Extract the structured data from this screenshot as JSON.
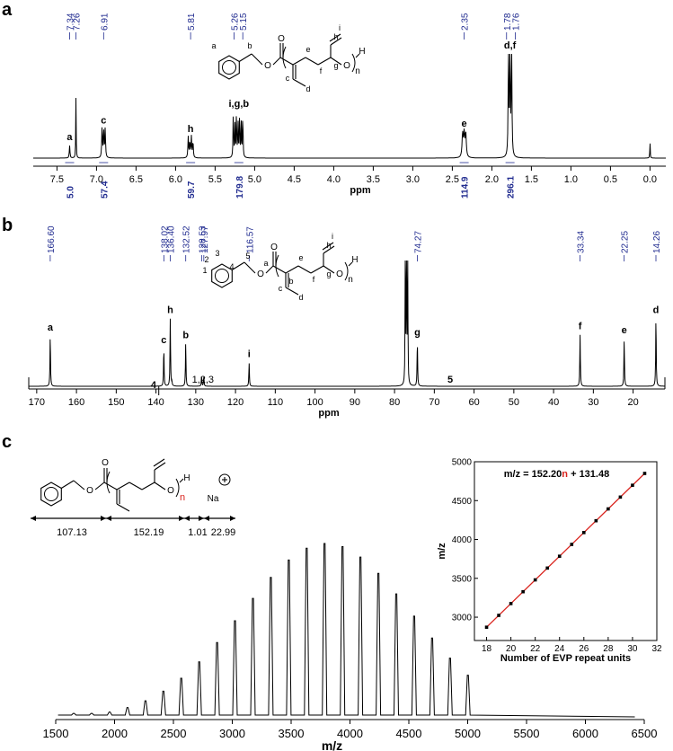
{
  "panels": {
    "a": "a",
    "b": "b",
    "c": "c"
  },
  "colors": {
    "annot": "#1f2a8f",
    "fit": "#d9231d",
    "trace": "#000000",
    "inset_point": "#d9231d"
  },
  "chart_data": [
    {
      "type": "nmr_spectrum",
      "panel": "a",
      "xlabel": "ppm",
      "xlim": [
        7.8,
        -0.2
      ],
      "x_ticks": [
        "7.5",
        "7.0",
        "6.5",
        "6.0",
        "5.5",
        "5.0",
        "4.5",
        "4.0",
        "3.5",
        "3.0",
        "2.5",
        "2.0",
        "1.5",
        "1.0",
        "0.5",
        "0.0"
      ],
      "peak_labels": [
        "7.34",
        "7.26",
        "6.91",
        "5.81",
        "5.26",
        "5.15",
        "2.35",
        "1.78",
        "1.76"
      ],
      "assignments": [
        {
          "label": "a",
          "ppm": 7.34,
          "height": 0.12
        },
        {
          "label": "c",
          "ppm": 6.91,
          "height": 0.28
        },
        {
          "label": "h",
          "ppm": 5.81,
          "height": 0.2
        },
        {
          "label": "i,g,b",
          "ppm": 5.2,
          "height": 0.44
        },
        {
          "label": "e",
          "ppm": 2.35,
          "height": 0.25
        },
        {
          "label": "d,f",
          "ppm": 1.77,
          "height": 1.0
        }
      ],
      "integrals": [
        {
          "value": "5.0",
          "ppm": 7.34
        },
        {
          "value": "57.4",
          "ppm": 6.91
        },
        {
          "value": "59.7",
          "ppm": 5.81
        },
        {
          "value": "179.8",
          "ppm": 5.2
        },
        {
          "value": "114.9",
          "ppm": 2.35
        },
        {
          "value": "296.1",
          "ppm": 1.77
        }
      ],
      "structure_labels": [
        "a",
        "b",
        "c",
        "d",
        "e",
        "f",
        "g",
        "h",
        "i",
        "n",
        "H",
        "O",
        "O",
        "O"
      ]
    },
    {
      "type": "nmr_spectrum",
      "panel": "b",
      "xlabel": "ppm",
      "xlim": [
        172,
        12
      ],
      "x_ticks": [
        "170",
        "160",
        "150",
        "140",
        "130",
        "120",
        "110",
        "100",
        "90",
        "80",
        "70",
        "60",
        "50",
        "40",
        "30",
        "20"
      ],
      "peak_labels": [
        "166.60",
        "138.02",
        "136.40",
        "132.52",
        "128.53",
        "127.97",
        "116.57",
        "74.27",
        "33.34",
        "22.25",
        "14.26"
      ],
      "assignments": [
        {
          "label": "a",
          "ppm": 166.6,
          "height": 0.4
        },
        {
          "label": "c",
          "ppm": 138.02,
          "height": 0.3
        },
        {
          "label": "h",
          "ppm": 136.4,
          "height": 0.54
        },
        {
          "label": "b",
          "ppm": 132.52,
          "height": 0.34
        },
        {
          "label": "1,2,3",
          "ppm": 128.2,
          "height": 0.04
        },
        {
          "label": "i",
          "ppm": 116.57,
          "height": 0.19
        },
        {
          "label": "g",
          "ppm": 74.27,
          "height": 0.36
        },
        {
          "label": "f",
          "ppm": 33.34,
          "height": 0.41
        },
        {
          "label": "e",
          "ppm": 22.25,
          "height": 0.38
        },
        {
          "label": "d",
          "ppm": 14.26,
          "height": 0.54
        }
      ],
      "annotations": [
        "4",
        "5"
      ],
      "solvent_ppm": 77.0,
      "structure_labels": [
        "1",
        "2",
        "3",
        "4",
        "5",
        "a",
        "b",
        "c",
        "d",
        "e",
        "f",
        "g",
        "h",
        "i",
        "n",
        "H",
        "O",
        "O",
        "O"
      ]
    },
    {
      "type": "mass_spectrum",
      "panel": "c",
      "xlabel": "m/z",
      "xlim": [
        1500,
        6500
      ],
      "x_ticks": [
        "1500",
        "2000",
        "2500",
        "3000",
        "3500",
        "4000",
        "4500",
        "5000",
        "5500",
        "6000",
        "6500"
      ],
      "repeat_unit": 152.2,
      "offset": 131.48,
      "n_range": [
        10,
        32
      ],
      "fragments": [
        {
          "label": "107.13"
        },
        {
          "label": "152.19"
        },
        {
          "label": "1.01"
        },
        {
          "label": "22.99"
        }
      ],
      "structure_labels": [
        "n",
        "H",
        "O",
        "O",
        "O",
        "Na"
      ],
      "inset": {
        "type": "scatter",
        "title": "m/z = 152.20n + 131.48",
        "title_n": "n",
        "xlabel": "Number of EVP repeat units",
        "ylabel": "m/z",
        "xlim": [
          17,
          32
        ],
        "ylim": [
          2700,
          5000
        ],
        "x_ticks": [
          "18",
          "20",
          "22",
          "24",
          "26",
          "28",
          "30",
          "32"
        ],
        "y_ticks": [
          "3000",
          "3500",
          "4000",
          "4500",
          "5000"
        ],
        "x": [
          18,
          19,
          20,
          21,
          22,
          23,
          24,
          25,
          26,
          27,
          28,
          29,
          30,
          31
        ],
        "y": [
          2871.08,
          3023.28,
          3175.48,
          3327.68,
          3479.88,
          3632.08,
          3784.28,
          3936.48,
          4088.68,
          4240.88,
          4393.08,
          4545.28,
          4697.48,
          4849.68
        ],
        "fit": {
          "slope": 152.2,
          "intercept": 131.48
        }
      }
    }
  ]
}
